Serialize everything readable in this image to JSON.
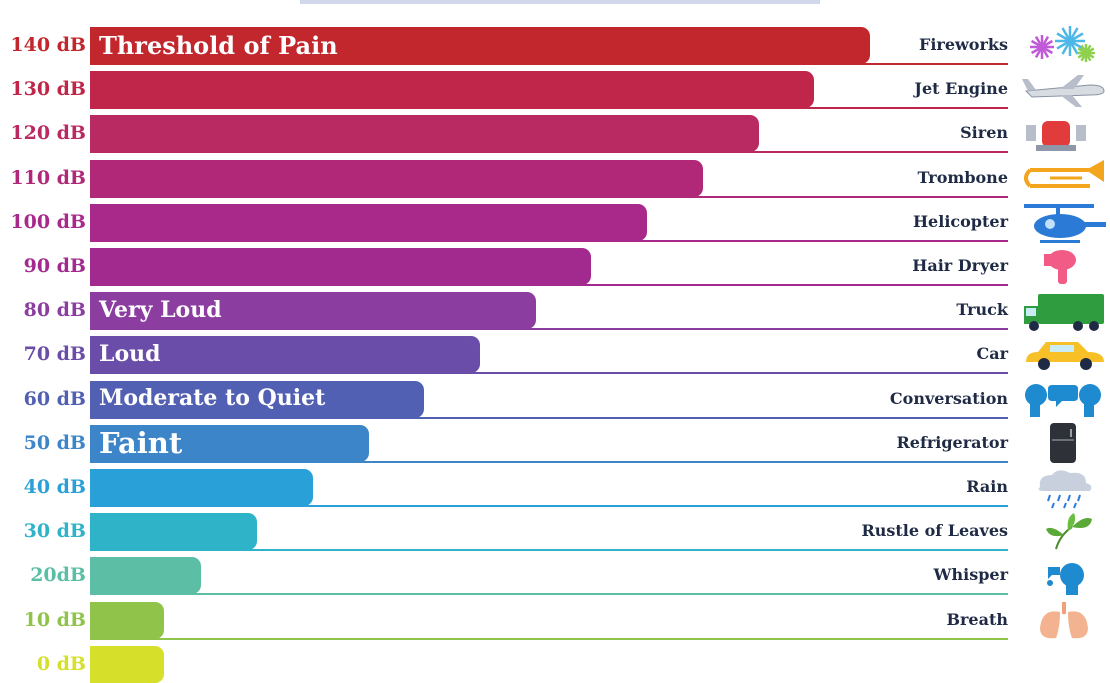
{
  "chart_data": {
    "type": "bar",
    "orientation": "horizontal",
    "unit": "dB",
    "xlim": [
      0,
      160
    ],
    "grid": false,
    "legend": "none",
    "categories": [
      "140 dB",
      "130 dB",
      "120 dB",
      "110 dB",
      "100 dB",
      "90 dB",
      "80 dB",
      "70 dB",
      "60 dB",
      "50 dB",
      "40 dB",
      "30 dB",
      "20dB",
      "10 dB",
      "0 dB"
    ],
    "values": [
      140,
      130,
      120,
      110,
      100,
      90,
      80,
      70,
      60,
      50,
      40,
      30,
      20,
      10,
      0
    ],
    "sources": [
      "Fireworks",
      "Jet Engine",
      "Siren",
      "Trombone",
      "Helicopter",
      "Hair Dryer",
      "Truck",
      "Car",
      "Conversation",
      "Refrigerator",
      "Rain",
      "Rustle of Leaves",
      "Whisper",
      "Breath",
      ""
    ],
    "icons": [
      "fireworks-icon",
      "jet-engine-icon",
      "siren-icon",
      "trombone-icon",
      "helicopter-icon",
      "hair-dryer-icon",
      "truck-icon",
      "car-icon",
      "conversation-icon",
      "refrigerator-icon",
      "rain-icon",
      "rustle-of-leaves-icon",
      "whisper-icon",
      "breath-icon",
      ""
    ],
    "zones": [
      {
        "label": "Threshold of Pain",
        "row": 0
      },
      {
        "label": "Very Loud",
        "row": 6
      },
      {
        "label": "Loud",
        "row": 7
      },
      {
        "label": "Moderate to Quiet",
        "row": 8
      },
      {
        "label": "Faint",
        "row": 9
      }
    ],
    "colors": [
      "#c1272d",
      "#c0264a",
      "#b92a62",
      "#b02877",
      "#a9298b",
      "#a22a8f",
      "#8b3ea0",
      "#6a4da8",
      "#5260b3",
      "#3c85c8",
      "#2aa0d8",
      "#2eb3c8",
      "#5cbfa5",
      "#8fc34a",
      "#d6e02a"
    ]
  }
}
